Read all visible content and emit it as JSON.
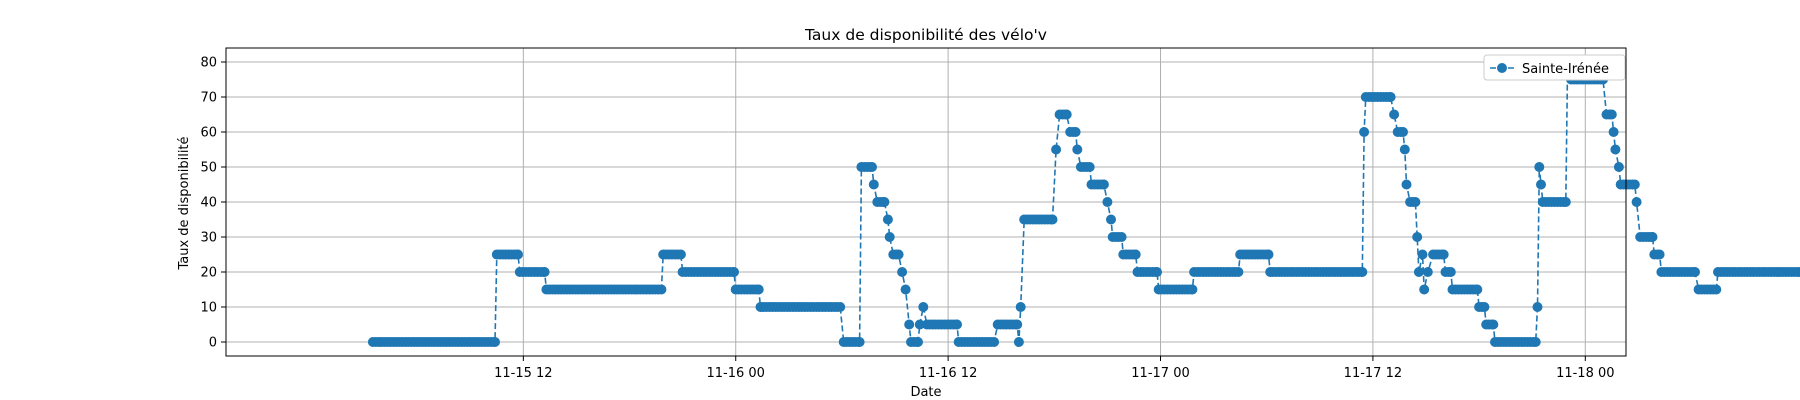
{
  "chart_data": {
    "type": "line",
    "title": "Taux de disponibilité des vélo'v",
    "xlabel": "Date",
    "ylabel": "Taux de disponibilité",
    "x_unit": "hours since 2019-11-15 00:00",
    "xlim": [
      -4.8,
      74.3
    ],
    "ylim": [
      -4,
      84
    ],
    "x_ticks": [
      {
        "value": 12,
        "label": "11-15 12"
      },
      {
        "value": 24,
        "label": "11-16 00"
      },
      {
        "value": 36,
        "label": "11-16 12"
      },
      {
        "value": 48,
        "label": "11-17 00"
      },
      {
        "value": 60,
        "label": "11-17 12"
      },
      {
        "value": 72,
        "label": "11-18 00"
      }
    ],
    "y_ticks": [
      0,
      10,
      20,
      30,
      40,
      50,
      60,
      70,
      80
    ],
    "grid": true,
    "legend_position": "top-right",
    "line_style": "dashed",
    "marker": "circle",
    "colors": {
      "series": "#1f77b4",
      "grid": "#b0b0b0",
      "frame": "#000000"
    },
    "series": [
      {
        "name": "Sainte-Irénée",
        "points": [
          [
            3.5,
            0
          ],
          [
            10.4,
            0
          ],
          [
            10.5,
            25
          ],
          [
            11.7,
            25
          ],
          [
            11.8,
            20
          ],
          [
            13.2,
            20
          ],
          [
            13.3,
            15
          ],
          [
            19.8,
            15
          ],
          [
            19.9,
            25
          ],
          [
            20.9,
            25
          ],
          [
            21.0,
            20
          ],
          [
            23.9,
            20
          ],
          [
            24.0,
            15
          ],
          [
            25.3,
            15
          ],
          [
            25.4,
            10
          ],
          [
            29.9,
            10
          ],
          [
            30.1,
            0
          ],
          [
            31.0,
            0
          ],
          [
            31.1,
            50
          ],
          [
            31.7,
            50
          ],
          [
            31.8,
            45
          ],
          [
            32.0,
            40
          ],
          [
            32.4,
            40
          ],
          [
            32.6,
            35
          ],
          [
            32.7,
            30
          ],
          [
            32.9,
            25
          ],
          [
            33.2,
            25
          ],
          [
            33.4,
            20
          ],
          [
            33.6,
            15
          ],
          [
            33.8,
            5
          ],
          [
            33.9,
            0
          ],
          [
            34.3,
            0
          ],
          [
            34.4,
            5
          ],
          [
            34.6,
            10
          ],
          [
            34.8,
            5
          ],
          [
            36.5,
            5
          ],
          [
            36.6,
            0
          ],
          [
            38.6,
            0
          ],
          [
            38.8,
            5
          ],
          [
            39.9,
            5
          ],
          [
            40.0,
            0
          ],
          [
            40.1,
            10
          ],
          [
            40.3,
            35
          ],
          [
            41.9,
            35
          ],
          [
            42.1,
            55
          ],
          [
            42.3,
            65
          ],
          [
            42.7,
            65
          ],
          [
            42.9,
            60
          ],
          [
            43.2,
            60
          ],
          [
            43.3,
            55
          ],
          [
            43.5,
            50
          ],
          [
            44.0,
            50
          ],
          [
            44.1,
            45
          ],
          [
            44.8,
            45
          ],
          [
            45.0,
            40
          ],
          [
            45.2,
            35
          ],
          [
            45.3,
            30
          ],
          [
            45.8,
            30
          ],
          [
            45.9,
            25
          ],
          [
            46.6,
            25
          ],
          [
            46.7,
            20
          ],
          [
            47.8,
            20
          ],
          [
            47.9,
            15
          ],
          [
            49.8,
            15
          ],
          [
            49.9,
            20
          ],
          [
            52.4,
            20
          ],
          [
            52.5,
            25
          ],
          [
            54.1,
            25
          ],
          [
            54.2,
            20
          ],
          [
            59.4,
            20
          ],
          [
            59.5,
            60
          ],
          [
            59.6,
            70
          ],
          [
            61.0,
            70
          ],
          [
            61.2,
            65
          ],
          [
            61.4,
            60
          ],
          [
            61.7,
            60
          ],
          [
            61.8,
            55
          ],
          [
            61.9,
            45
          ],
          [
            62.1,
            40
          ],
          [
            62.4,
            40
          ],
          [
            62.5,
            30
          ],
          [
            62.6,
            20
          ],
          [
            62.8,
            25
          ],
          [
            62.9,
            15
          ],
          [
            63.1,
            20
          ],
          [
            63.4,
            25
          ],
          [
            64.0,
            25
          ],
          [
            64.1,
            20
          ],
          [
            64.4,
            20
          ],
          [
            64.5,
            15
          ],
          [
            65.9,
            15
          ],
          [
            66.0,
            10
          ],
          [
            66.3,
            10
          ],
          [
            66.4,
            5
          ],
          [
            66.8,
            5
          ],
          [
            66.9,
            0
          ],
          [
            69.2,
            0
          ],
          [
            69.3,
            10
          ],
          [
            69.4,
            50
          ],
          [
            69.5,
            45
          ],
          [
            69.6,
            40
          ],
          [
            70.9,
            40
          ],
          [
            71.0,
            80
          ],
          [
            71.2,
            75
          ],
          [
            73.0,
            75
          ],
          [
            73.2,
            65
          ],
          [
            73.5,
            65
          ],
          [
            73.6,
            60
          ],
          [
            73.7,
            55
          ],
          [
            73.9,
            50
          ],
          [
            74.0,
            45
          ],
          [
            74.8,
            45
          ],
          [
            74.9,
            40
          ],
          [
            75.1,
            30
          ],
          [
            75.8,
            30
          ],
          [
            75.9,
            25
          ],
          [
            76.2,
            25
          ],
          [
            76.3,
            20
          ],
          [
            78.2,
            20
          ],
          [
            78.4,
            15
          ],
          [
            79.4,
            15
          ],
          [
            79.5,
            20
          ],
          [
            87.3,
            20
          ]
        ]
      }
    ]
  }
}
